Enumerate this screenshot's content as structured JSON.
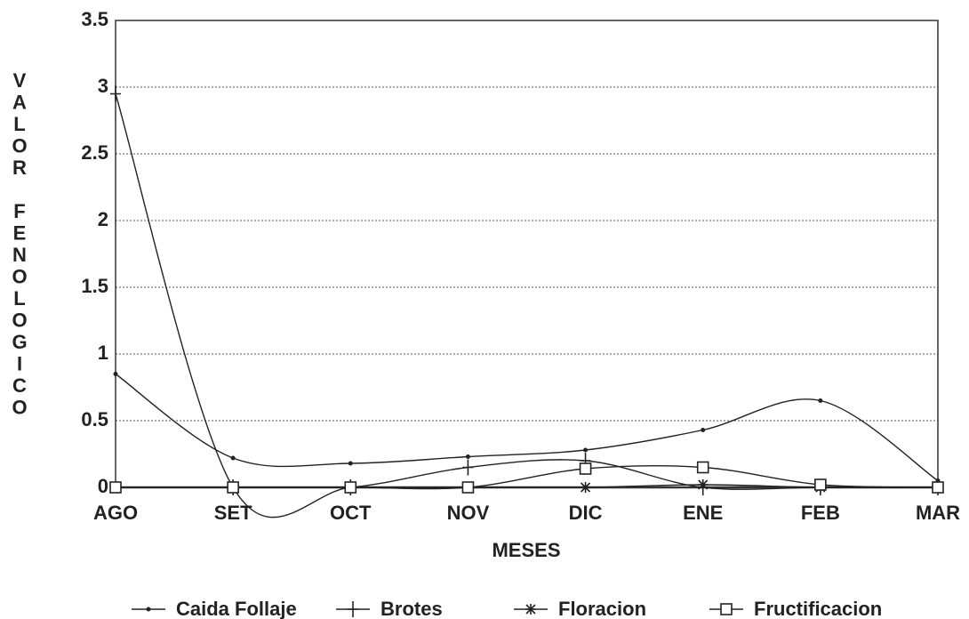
{
  "chart_data": {
    "type": "line",
    "xlabel": "MESES",
    "ylabel": "VALOR FENOLOGICO",
    "categories": [
      "AGO",
      "SET",
      "OCT",
      "NOV",
      "DIC",
      "ENE",
      "FEB",
      "MAR"
    ],
    "series": [
      {
        "name": "Caida Follaje",
        "color": "#222222",
        "marker": "dot",
        "values": [
          0.85,
          0.22,
          0.18,
          0.23,
          0.28,
          0.43,
          0.65,
          0.05
        ]
      },
      {
        "name": "Brotes",
        "color": "#222222",
        "marker": "plus",
        "values": [
          2.95,
          0,
          0,
          0.15,
          0.2,
          0,
          0,
          0
        ]
      },
      {
        "name": "Floracion",
        "color": "#222222",
        "marker": "star",
        "values": [
          0,
          0,
          0,
          0,
          0,
          0.02,
          0,
          0
        ]
      },
      {
        "name": "Fructificacion",
        "color": "#222222",
        "marker": "square",
        "values": [
          0,
          0,
          0,
          0,
          0.14,
          0.15,
          0.02,
          0
        ]
      }
    ],
    "ylim": [
      0,
      3.5
    ],
    "yticks": [
      0,
      0.5,
      1,
      1.5,
      2,
      2.5,
      3,
      3.5
    ],
    "grid": true,
    "legend": "bottom"
  }
}
